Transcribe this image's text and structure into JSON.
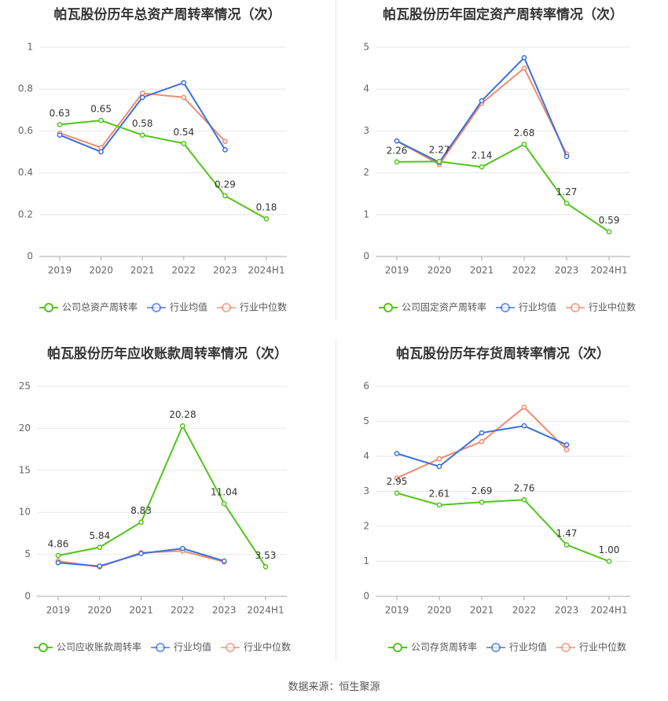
{
  "legend_labels": {
    "industry_avg": "行业均值",
    "industry_median": "行业中位数"
  },
  "colors": {
    "company": "#52c41a",
    "industry_avg": "#3d6fdb",
    "industry_median": "#f08c6c",
    "grid": "#e8e8e8",
    "axis": "#aaaaaa",
    "text": "#666666",
    "title": "#333333"
  },
  "source": "数据来源：恒生聚源",
  "chart_data": [
    {
      "type": "line",
      "title": "帕瓦股份历年总资产周转率情况（次）",
      "categories": [
        "2019",
        "2020",
        "2021",
        "2022",
        "2023",
        "2024H1"
      ],
      "ylim": [
        0,
        1
      ],
      "yticks": [
        "0",
        "0.2",
        "0.4",
        "0.6",
        "0.8",
        "1"
      ],
      "series": [
        {
          "name": "公司总资产周转率",
          "role": "company",
          "values": [
            0.63,
            0.65,
            0.58,
            0.54,
            0.29,
            0.18
          ],
          "labels": [
            "0.63",
            "0.65",
            "0.58",
            "0.54",
            "0.29",
            "0.18"
          ]
        },
        {
          "name": "行业均值",
          "role": "industry_avg",
          "values": [
            0.58,
            0.5,
            0.76,
            0.83,
            0.51,
            null
          ]
        },
        {
          "name": "行业中位数",
          "role": "industry_median",
          "values": [
            0.59,
            0.52,
            0.78,
            0.76,
            0.55,
            null
          ]
        }
      ]
    },
    {
      "type": "line",
      "title": "帕瓦股份历年固定资产周转率情况（次）",
      "categories": [
        "2019",
        "2020",
        "2021",
        "2022",
        "2023",
        "2024H1"
      ],
      "ylim": [
        0,
        5
      ],
      "yticks": [
        "0",
        "1",
        "2",
        "3",
        "4",
        "5"
      ],
      "series": [
        {
          "name": "公司固定资产周转率",
          "role": "company",
          "values": [
            2.26,
            2.27,
            2.14,
            2.68,
            1.27,
            0.59
          ],
          "labels": [
            "2.26",
            "2.27",
            "2.14",
            "2.68",
            "1.27",
            "0.59"
          ]
        },
        {
          "name": "行业均值",
          "role": "industry_avg",
          "values": [
            2.76,
            2.25,
            3.72,
            4.75,
            2.39,
            null
          ]
        },
        {
          "name": "行业中位数",
          "role": "industry_median",
          "values": [
            2.76,
            2.2,
            3.66,
            4.5,
            2.45,
            null
          ]
        }
      ]
    },
    {
      "type": "line",
      "title": "帕瓦股份历年应收账款周转率情况（次）",
      "categories": [
        "2019",
        "2020",
        "2021",
        "2022",
        "2023",
        "2024H1"
      ],
      "ylim": [
        0,
        25
      ],
      "yticks": [
        "0",
        "5",
        "10",
        "15",
        "20",
        "25"
      ],
      "series": [
        {
          "name": "公司应收账款周转率",
          "role": "company",
          "values": [
            4.86,
            5.84,
            8.83,
            20.28,
            11.04,
            3.53
          ],
          "labels": [
            "4.86",
            "5.84",
            "8.83",
            "20.28",
            "11.04",
            "3.53"
          ]
        },
        {
          "name": "行业均值",
          "role": "industry_avg",
          "values": [
            4.0,
            3.6,
            5.1,
            5.7,
            4.2,
            null
          ]
        },
        {
          "name": "行业中位数",
          "role": "industry_median",
          "values": [
            4.2,
            3.5,
            5.2,
            5.4,
            4.1,
            null
          ]
        }
      ]
    },
    {
      "type": "line",
      "title": "帕瓦股份历年存货周转率情况（次）",
      "categories": [
        "2019",
        "2020",
        "2021",
        "2022",
        "2023",
        "2024H1"
      ],
      "ylim": [
        0,
        6
      ],
      "yticks": [
        "0",
        "1",
        "2",
        "3",
        "4",
        "5",
        "6"
      ],
      "series": [
        {
          "name": "公司存货周转率",
          "role": "company",
          "values": [
            2.95,
            2.61,
            2.69,
            2.76,
            1.47,
            1.0
          ],
          "labels": [
            "2.95",
            "2.61",
            "2.69",
            "2.76",
            "1.47",
            "1.00"
          ]
        },
        {
          "name": "行业均值",
          "role": "industry_avg",
          "values": [
            4.08,
            3.71,
            4.67,
            4.87,
            4.33,
            null
          ]
        },
        {
          "name": "行业中位数",
          "role": "industry_median",
          "values": [
            3.38,
            3.93,
            4.42,
            5.4,
            4.19,
            null
          ]
        }
      ]
    }
  ]
}
